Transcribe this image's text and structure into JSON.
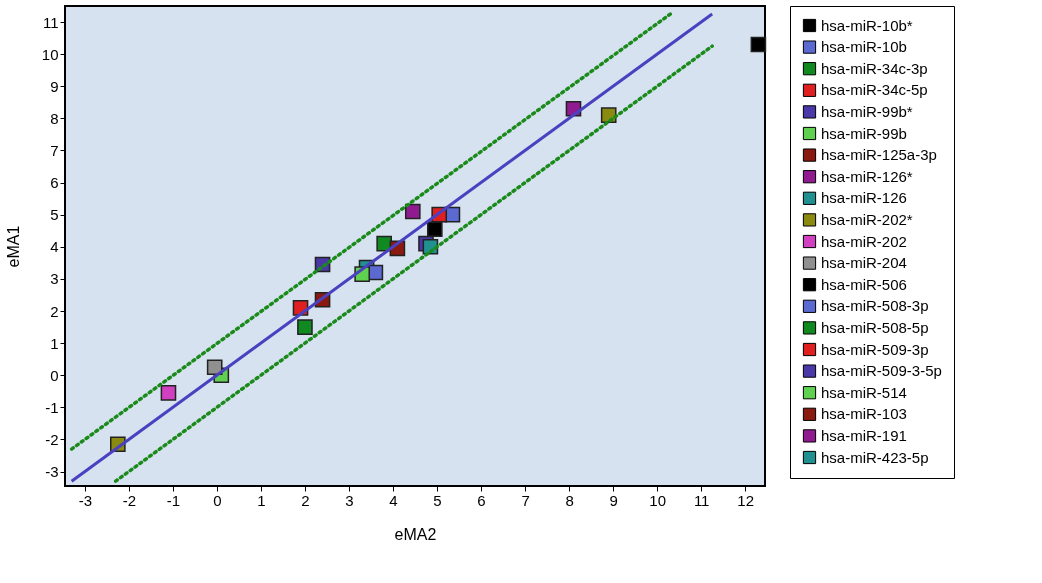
{
  "chart_data": {
    "type": "scatter",
    "xlabel": "eMA2",
    "ylabel": "eMA1",
    "xlim": [
      -3.45,
      12.45
    ],
    "ylim": [
      -3.45,
      11.5
    ],
    "xticks": [
      -3,
      -2,
      -1,
      0,
      1,
      2,
      3,
      4,
      5,
      6,
      7,
      8,
      9,
      10,
      11,
      12
    ],
    "yticks": [
      -3,
      -2,
      -1,
      0,
      1,
      2,
      3,
      4,
      5,
      6,
      7,
      8,
      9,
      10,
      11
    ],
    "grid": false,
    "legend": "right",
    "marker": "square",
    "series": [
      {
        "name": "hsa-miR-10b*",
        "color": "#000000",
        "x": [
          12.3
        ],
        "values": [
          10.3
        ]
      },
      {
        "name": "hsa-miR-10b",
        "color": "#5a6ad0",
        "x": [
          5.35
        ],
        "values": [
          5.0
        ]
      },
      {
        "name": "hsa-miR-34c-3p",
        "color": "#108a20",
        "x": [
          2.0
        ],
        "values": [
          1.5
        ]
      },
      {
        "name": "hsa-miR-34c-5p",
        "color": "#e02020",
        "x": [
          1.9
        ],
        "values": [
          2.1
        ]
      },
      {
        "name": "hsa-miR-99b*",
        "color": "#4a38a8",
        "x": [
          2.4
        ],
        "values": [
          3.45
        ]
      },
      {
        "name": "hsa-miR-99b",
        "color": "#60d050",
        "x": [
          0.1
        ],
        "values": [
          0.0
        ]
      },
      {
        "name": "hsa-miR-125a-3p",
        "color": "#8a1a10",
        "x": [
          2.4
        ],
        "values": [
          2.35
        ]
      },
      {
        "name": "hsa-miR-126*",
        "color": "#901a90",
        "x": [
          8.1
        ],
        "values": [
          8.3
        ]
      },
      {
        "name": "hsa-miR-126",
        "color": "#209090",
        "x": [
          3.4
        ],
        "values": [
          3.35
        ]
      },
      {
        "name": "hsa-miR-202*",
        "color": "#8a8a10",
        "x": [
          -2.25,
          8.9
        ],
        "values": [
          -2.15,
          8.1
        ]
      },
      {
        "name": "hsa-miR-202",
        "color": "#d040c0",
        "x": [
          -1.1
        ],
        "values": [
          -0.55
        ]
      },
      {
        "name": "hsa-miR-204",
        "color": "#909090",
        "x": [
          -0.05
        ],
        "values": [
          0.25
        ]
      },
      {
        "name": "hsa-miR-506",
        "color": "#000000",
        "x": [
          4.95
        ],
        "values": [
          4.55
        ]
      },
      {
        "name": "hsa-miR-508-3p",
        "color": "#5a6ad0",
        "x": [
          3.6
        ],
        "values": [
          3.2
        ]
      },
      {
        "name": "hsa-miR-508-5p",
        "color": "#108a20",
        "x": [
          3.8
        ],
        "values": [
          4.1
        ]
      },
      {
        "name": "hsa-miR-509-3p",
        "color": "#e02020",
        "x": [
          5.05
        ],
        "values": [
          5.0
        ]
      },
      {
        "name": "hsa-miR-509-3-5p",
        "color": "#4a38a8",
        "x": [
          4.75
        ],
        "values": [
          4.1
        ]
      },
      {
        "name": "hsa-miR-514",
        "color": "#60d050",
        "x": [
          3.3
        ],
        "values": [
          3.15
        ]
      },
      {
        "name": "hsa-miR-103",
        "color": "#8a1a10",
        "x": [
          4.1
        ],
        "values": [
          3.95
        ]
      },
      {
        "name": "hsa-miR-191",
        "color": "#901a90",
        "x": [
          4.45
        ],
        "values": [
          5.1
        ]
      },
      {
        "name": "hsa-miR-423-5p",
        "color": "#209090",
        "x": [
          4.85
        ],
        "values": [
          4.0
        ]
      },
      {
        "type": "line",
        "color": "#4a40c0",
        "line_style": "solid",
        "marker": "none",
        "x": [
          -3.3,
          11.25
        ],
        "values": [
          -3.3,
          11.25
        ]
      },
      {
        "type": "line",
        "color": "#1a8a1a",
        "line_style": "dotted",
        "marker": "none",
        "x": [
          -3.3,
          10.3
        ],
        "values": [
          -2.3,
          11.25
        ]
      },
      {
        "type": "line",
        "color": "#1a8a1a",
        "line_style": "dotted",
        "marker": "none",
        "x": [
          -2.3,
          11.25
        ],
        "values": [
          -3.3,
          10.25
        ]
      }
    ]
  }
}
